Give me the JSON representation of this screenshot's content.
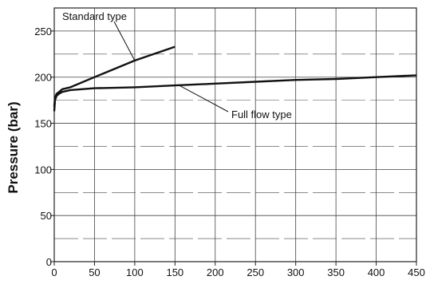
{
  "chart_data": {
    "type": "line",
    "title": "",
    "xlabel": "",
    "ylabel": "Pressure (bar)",
    "xlim": [
      0,
      450
    ],
    "ylim": [
      0,
      275
    ],
    "grid": true,
    "x_ticks": [
      0,
      50,
      100,
      150,
      200,
      250,
      300,
      350,
      400,
      450
    ],
    "y_ticks": [
      0,
      50,
      100,
      150,
      200,
      250
    ],
    "series": [
      {
        "name": "Standard type",
        "x": [
          0,
          1,
          3,
          6,
          10,
          20,
          50,
          100,
          150
        ],
        "y": [
          168,
          178,
          182,
          184,
          187,
          189,
          200,
          218,
          233
        ]
      },
      {
        "name": "Full flow type",
        "x": [
          0,
          1,
          3,
          6,
          10,
          20,
          50,
          100,
          150,
          200,
          250,
          300,
          350,
          400,
          450
        ],
        "y": [
          163,
          175,
          180,
          182,
          184,
          186,
          188,
          189,
          191,
          193,
          195,
          197,
          198,
          200,
          202
        ]
      }
    ],
    "annotations": [
      {
        "text": "Standard type",
        "series": 0,
        "anchor_x": 100
      },
      {
        "text": "Full flow type",
        "series": 1,
        "anchor_x": 155
      }
    ]
  }
}
